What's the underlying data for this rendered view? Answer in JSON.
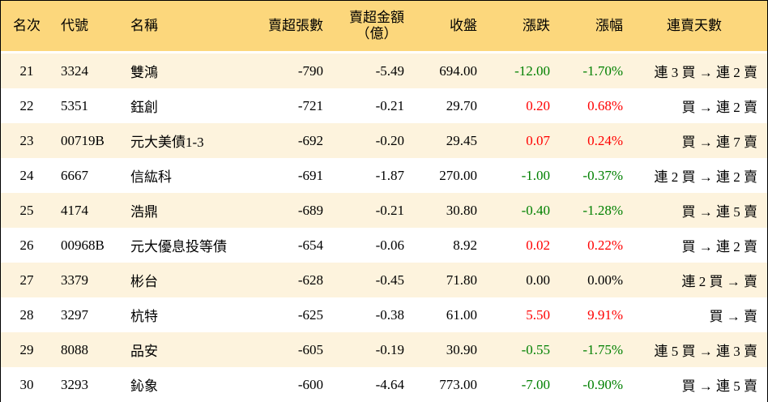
{
  "colors": {
    "header_bg": "#fcd77c",
    "odd_row_bg": "#fdf3dd",
    "even_row_bg": "#ffffff",
    "up": "#ff0000",
    "down": "#008000"
  },
  "headers": {
    "rank": "名次",
    "code": "代號",
    "name": "名稱",
    "sell_excess_lots": "賣超張數",
    "sell_excess_amount_line1": "賣超金額",
    "sell_excess_amount_line2": "（億）",
    "close": "收盤",
    "change": "漲跌",
    "change_pct": "漲幅",
    "consecutive_days": "連賣天數"
  },
  "rows": [
    {
      "rank": "21",
      "code": "3324",
      "name": "雙鴻",
      "lots": "-790",
      "amount": "-5.49",
      "close": "694.00",
      "change": "-12.00",
      "change_pct": "-1.70%",
      "trend": "down",
      "days": "連 3 買 → 連 2 賣"
    },
    {
      "rank": "22",
      "code": "5351",
      "name": "鈺創",
      "lots": "-721",
      "amount": "-0.21",
      "close": "29.70",
      "change": "0.20",
      "change_pct": "0.68%",
      "trend": "up",
      "days": "買 → 連 2 賣"
    },
    {
      "rank": "23",
      "code": "00719B",
      "name": "元大美債1-3",
      "lots": "-692",
      "amount": "-0.20",
      "close": "29.45",
      "change": "0.07",
      "change_pct": "0.24%",
      "trend": "up",
      "days": "買 → 連 7 賣"
    },
    {
      "rank": "24",
      "code": "6667",
      "name": "信紘科",
      "lots": "-691",
      "amount": "-1.87",
      "close": "270.00",
      "change": "-1.00",
      "change_pct": "-0.37%",
      "trend": "down",
      "days": "連 2 買 → 連 2 賣"
    },
    {
      "rank": "25",
      "code": "4174",
      "name": "浩鼎",
      "lots": "-689",
      "amount": "-0.21",
      "close": "30.80",
      "change": "-0.40",
      "change_pct": "-1.28%",
      "trend": "down",
      "days": "買 → 連 5 賣"
    },
    {
      "rank": "26",
      "code": "00968B",
      "name": "元大優息投等債",
      "lots": "-654",
      "amount": "-0.06",
      "close": "8.92",
      "change": "0.02",
      "change_pct": "0.22%",
      "trend": "up",
      "days": "買 → 連 2 賣"
    },
    {
      "rank": "27",
      "code": "3379",
      "name": "彬台",
      "lots": "-628",
      "amount": "-0.45",
      "close": "71.80",
      "change": "0.00",
      "change_pct": "0.00%",
      "trend": "flat",
      "days": "連 2 買 → 賣"
    },
    {
      "rank": "28",
      "code": "3297",
      "name": "杭特",
      "lots": "-625",
      "amount": "-0.38",
      "close": "61.00",
      "change": "5.50",
      "change_pct": "9.91%",
      "trend": "up",
      "days": "買 → 賣"
    },
    {
      "rank": "29",
      "code": "8088",
      "name": "品安",
      "lots": "-605",
      "amount": "-0.19",
      "close": "30.90",
      "change": "-0.55",
      "change_pct": "-1.75%",
      "trend": "down",
      "days": "連 5 買 → 連 3 賣"
    },
    {
      "rank": "30",
      "code": "3293",
      "name": "鈊象",
      "lots": "-600",
      "amount": "-4.64",
      "close": "773.00",
      "change": "-7.00",
      "change_pct": "-0.90%",
      "trend": "down",
      "days": "買 → 連 5 賣"
    }
  ]
}
